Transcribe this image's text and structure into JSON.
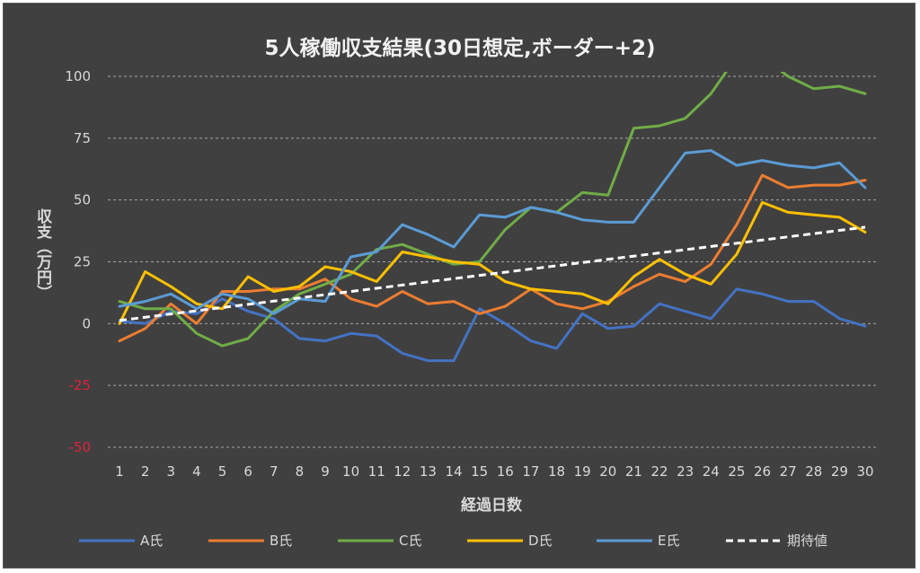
{
  "chart_data": {
    "type": "line",
    "title": "5人稼働収支結果(30日想定,ボーダー+2)",
    "xlabel": "経過日数",
    "ylabel": "収支（万円）",
    "ylim": [
      -50,
      100
    ],
    "yticks": [
      100,
      75,
      50,
      25,
      0,
      -25,
      -50
    ],
    "x": [
      1,
      2,
      3,
      4,
      5,
      6,
      7,
      8,
      9,
      10,
      11,
      12,
      13,
      14,
      15,
      16,
      17,
      18,
      19,
      20,
      21,
      22,
      23,
      24,
      25,
      26,
      27,
      28,
      29,
      30
    ],
    "grid": true,
    "legend_position": "bottom",
    "series": [
      {
        "name": "A氏",
        "color": "#4472c4",
        "style": "solid",
        "values": [
          1,
          0,
          5,
          4,
          10,
          5,
          2,
          -6,
          -7,
          -4,
          -5,
          -12,
          -15,
          -15,
          6,
          0,
          -7,
          -10,
          4,
          -2,
          -1,
          8,
          5,
          2,
          14,
          12,
          9,
          9,
          2,
          -1
        ]
      },
      {
        "name": "B氏",
        "color": "#ed7d31",
        "style": "solid",
        "values": [
          -7,
          -2,
          8,
          0,
          13,
          13,
          14,
          14,
          18,
          10,
          7,
          13,
          8,
          9,
          4,
          7,
          14,
          8,
          6,
          9,
          15,
          20,
          17,
          24,
          40,
          60,
          55,
          56,
          56,
          58
        ]
      },
      {
        "name": "C氏",
        "color": "#70ad47",
        "style": "solid",
        "values": [
          9,
          6,
          6,
          -4,
          -9,
          -6,
          5,
          12,
          16,
          20,
          30,
          32,
          28,
          24,
          25,
          38,
          47,
          45,
          53,
          52,
          79,
          80,
          83,
          93,
          108,
          108,
          100,
          95,
          96,
          93
        ]
      },
      {
        "name": "D氏",
        "color": "#ffc000",
        "style": "solid",
        "values": [
          0,
          21,
          15,
          8,
          6,
          19,
          13,
          15,
          23,
          21,
          17,
          29,
          27,
          25,
          24,
          17,
          14,
          13,
          12,
          8,
          19,
          26,
          20,
          16,
          28,
          49,
          45,
          44,
          43,
          37
        ]
      },
      {
        "name": "E氏",
        "color": "#5b9bd5",
        "style": "solid",
        "values": [
          7,
          9,
          12,
          6,
          12,
          10,
          4,
          10,
          9,
          27,
          29,
          40,
          36,
          31,
          44,
          43,
          47,
          45,
          42,
          41,
          41,
          55,
          69,
          70,
          64,
          66,
          64,
          63,
          65,
          55
        ]
      },
      {
        "name": "期待値",
        "color": "#ffffff",
        "style": "dashed",
        "values": [
          1.3,
          2.6,
          3.9,
          5.2,
          6.5,
          7.8,
          9.1,
          10.4,
          11.7,
          13,
          14.3,
          15.6,
          16.9,
          18.2,
          19.5,
          20.8,
          22.1,
          23.4,
          24.7,
          26,
          27.3,
          28.6,
          29.9,
          31.2,
          32.5,
          33.8,
          35.1,
          36.4,
          37.7,
          39
        ]
      }
    ]
  }
}
